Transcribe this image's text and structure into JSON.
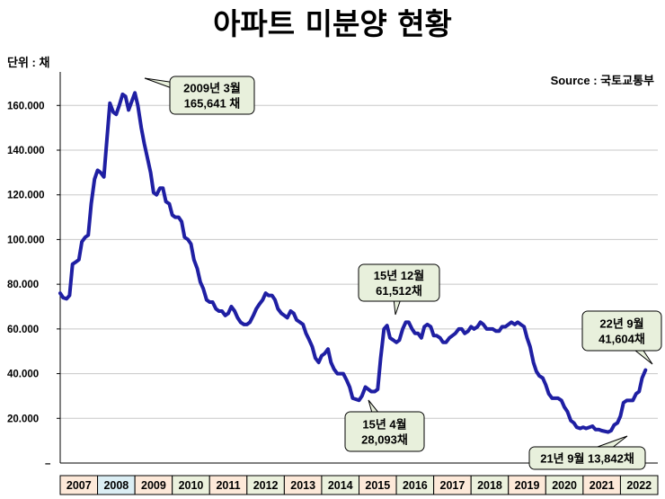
{
  "chart_data": {
    "type": "line",
    "title": "아파트 미분양 현황",
    "unit_label": "단위 : 채",
    "source_label": "Source :  국토교통부",
    "xlabel": "",
    "ylabel": "",
    "ylim": [
      0,
      175000
    ],
    "xlim": [
      2007.0,
      2023.0
    ],
    "y_ticks": [
      {
        "value": 20000,
        "label": "20.000"
      },
      {
        "value": 40000,
        "label": "40.000"
      },
      {
        "value": 60000,
        "label": "60.000"
      },
      {
        "value": 80000,
        "label": "80.000"
      },
      {
        "value": 100000,
        "label": "100.000"
      },
      {
        "value": 120000,
        "label": "120.000"
      },
      {
        "value": 140000,
        "label": "140.000"
      },
      {
        "value": 160000,
        "label": "160.000"
      }
    ],
    "x_categories": [
      {
        "label": "2007",
        "color": "#fde9d9"
      },
      {
        "label": "2008",
        "color": "#dbeef4"
      },
      {
        "label": "2009",
        "color": "#fde9d9"
      },
      {
        "label": "2010",
        "color": "#ebf1dd"
      },
      {
        "label": "2011",
        "color": "#fde9d9"
      },
      {
        "label": "2012",
        "color": "#ebf1dd"
      },
      {
        "label": "2013",
        "color": "#fde9d9"
      },
      {
        "label": "2014",
        "color": "#ebf1dd"
      },
      {
        "label": "2015",
        "color": "#fde9d9"
      },
      {
        "label": "2016",
        "color": "#ebf1dd"
      },
      {
        "label": "2017",
        "color": "#fde9d9"
      },
      {
        "label": "2018",
        "color": "#ebf1dd"
      },
      {
        "label": "2019",
        "color": "#fde9d9"
      },
      {
        "label": "2020",
        "color": "#ebf1dd"
      },
      {
        "label": "2021",
        "color": "#fde9d9"
      },
      {
        "label": "2022",
        "color": "#ebf1dd"
      }
    ],
    "series": [
      {
        "name": "",
        "color": "#1f1fa3",
        "points": [
          [
            2007.0,
            76000
          ],
          [
            2007.08,
            74000
          ],
          [
            2007.17,
            73500
          ],
          [
            2007.25,
            75000
          ],
          [
            2007.33,
            89000
          ],
          [
            2007.42,
            90000
          ],
          [
            2007.5,
            91000
          ],
          [
            2007.58,
            99000
          ],
          [
            2007.67,
            101000
          ],
          [
            2007.75,
            102000
          ],
          [
            2007.83,
            116000
          ],
          [
            2007.92,
            127000
          ],
          [
            2008.0,
            131000
          ],
          [
            2008.08,
            130000
          ],
          [
            2008.17,
            128000
          ],
          [
            2008.25,
            145000
          ],
          [
            2008.33,
            161000
          ],
          [
            2008.42,
            157000
          ],
          [
            2008.5,
            156000
          ],
          [
            2008.58,
            160000
          ],
          [
            2008.67,
            165000
          ],
          [
            2008.75,
            164000
          ],
          [
            2008.83,
            158000
          ],
          [
            2009.0,
            165641
          ],
          [
            2009.08,
            160000
          ],
          [
            2009.17,
            150000
          ],
          [
            2009.25,
            143000
          ],
          [
            2009.33,
            137000
          ],
          [
            2009.42,
            130000
          ],
          [
            2009.5,
            121000
          ],
          [
            2009.58,
            120000
          ],
          [
            2009.67,
            123000
          ],
          [
            2009.75,
            123000
          ],
          [
            2009.83,
            117000
          ],
          [
            2009.92,
            116000
          ],
          [
            2010.0,
            111000
          ],
          [
            2010.08,
            110000
          ],
          [
            2010.17,
            110000
          ],
          [
            2010.25,
            108000
          ],
          [
            2010.33,
            101000
          ],
          [
            2010.42,
            100000
          ],
          [
            2010.5,
            98000
          ],
          [
            2010.58,
            91000
          ],
          [
            2010.67,
            87000
          ],
          [
            2010.75,
            81000
          ],
          [
            2010.83,
            78000
          ],
          [
            2010.92,
            73000
          ],
          [
            2011.0,
            72000
          ],
          [
            2011.08,
            72000
          ],
          [
            2011.17,
            69000
          ],
          [
            2011.25,
            68000
          ],
          [
            2011.33,
            68000
          ],
          [
            2011.42,
            66000
          ],
          [
            2011.5,
            67000
          ],
          [
            2011.58,
            70000
          ],
          [
            2011.67,
            68000
          ],
          [
            2011.75,
            65000
          ],
          [
            2011.83,
            63000
          ],
          [
            2011.92,
            62000
          ],
          [
            2012.0,
            62000
          ],
          [
            2012.08,
            63000
          ],
          [
            2012.17,
            66000
          ],
          [
            2012.25,
            69000
          ],
          [
            2012.33,
            71000
          ],
          [
            2012.42,
            73000
          ],
          [
            2012.5,
            76000
          ],
          [
            2012.58,
            75000
          ],
          [
            2012.67,
            75000
          ],
          [
            2012.75,
            73000
          ],
          [
            2012.83,
            69000
          ],
          [
            2012.92,
            67000
          ],
          [
            2013.0,
            66000
          ],
          [
            2013.08,
            65000
          ],
          [
            2013.17,
            68000
          ],
          [
            2013.25,
            67000
          ],
          [
            2013.33,
            64000
          ],
          [
            2013.42,
            63000
          ],
          [
            2013.5,
            62000
          ],
          [
            2013.58,
            58000
          ],
          [
            2013.67,
            55000
          ],
          [
            2013.75,
            52000
          ],
          [
            2013.83,
            47000
          ],
          [
            2013.92,
            45000
          ],
          [
            2014.0,
            48000
          ],
          [
            2014.08,
            49000
          ],
          [
            2014.17,
            51000
          ],
          [
            2014.25,
            45000
          ],
          [
            2014.33,
            42000
          ],
          [
            2014.42,
            40000
          ],
          [
            2014.5,
            40000
          ],
          [
            2014.58,
            40000
          ],
          [
            2014.67,
            37000
          ],
          [
            2014.75,
            34000
          ],
          [
            2014.83,
            29000
          ],
          [
            2015.0,
            28093
          ],
          [
            2015.08,
            30000
          ],
          [
            2015.17,
            34000
          ],
          [
            2015.25,
            33000
          ],
          [
            2015.33,
            32000
          ],
          [
            2015.42,
            32000
          ],
          [
            2015.5,
            33000
          ],
          [
            2015.58,
            47000
          ],
          [
            2015.67,
            60000
          ],
          [
            2015.75,
            61512
          ],
          [
            2015.83,
            56000
          ],
          [
            2015.92,
            55000
          ],
          [
            2016.0,
            54000
          ],
          [
            2016.08,
            55000
          ],
          [
            2016.17,
            60000
          ],
          [
            2016.25,
            63000
          ],
          [
            2016.33,
            63000
          ],
          [
            2016.42,
            60000
          ],
          [
            2016.5,
            58000
          ],
          [
            2016.58,
            58000
          ],
          [
            2016.67,
            56000
          ],
          [
            2016.75,
            61000
          ],
          [
            2016.83,
            62000
          ],
          [
            2016.92,
            61000
          ],
          [
            2017.0,
            57000
          ],
          [
            2017.08,
            57000
          ],
          [
            2017.17,
            56000
          ],
          [
            2017.25,
            54000
          ],
          [
            2017.33,
            54000
          ],
          [
            2017.42,
            56000
          ],
          [
            2017.5,
            57000
          ],
          [
            2017.58,
            58000
          ],
          [
            2017.67,
            60000
          ],
          [
            2017.75,
            60000
          ],
          [
            2017.83,
            58000
          ],
          [
            2017.92,
            59000
          ],
          [
            2018.0,
            61000
          ],
          [
            2018.08,
            60000
          ],
          [
            2018.17,
            61000
          ],
          [
            2018.25,
            63000
          ],
          [
            2018.33,
            62000
          ],
          [
            2018.42,
            60000
          ],
          [
            2018.5,
            60000
          ],
          [
            2018.58,
            60000
          ],
          [
            2018.67,
            59000
          ],
          [
            2018.75,
            59000
          ],
          [
            2018.83,
            61000
          ],
          [
            2018.92,
            61000
          ],
          [
            2019.0,
            62000
          ],
          [
            2019.08,
            63000
          ],
          [
            2019.17,
            62000
          ],
          [
            2019.25,
            63000
          ],
          [
            2019.33,
            62000
          ],
          [
            2019.42,
            61000
          ],
          [
            2019.5,
            56000
          ],
          [
            2019.58,
            52000
          ],
          [
            2019.67,
            45000
          ],
          [
            2019.75,
            41000
          ],
          [
            2019.83,
            39000
          ],
          [
            2019.92,
            38000
          ],
          [
            2020.0,
            35000
          ],
          [
            2020.08,
            31000
          ],
          [
            2020.17,
            29000
          ],
          [
            2020.25,
            29000
          ],
          [
            2020.33,
            29000
          ],
          [
            2020.42,
            28000
          ],
          [
            2020.5,
            25000
          ],
          [
            2020.58,
            23000
          ],
          [
            2020.67,
            19000
          ],
          [
            2020.75,
            18000
          ],
          [
            2020.83,
            16000
          ],
          [
            2020.92,
            15500
          ],
          [
            2021.0,
            16000
          ],
          [
            2021.08,
            15500
          ],
          [
            2021.17,
            16000
          ],
          [
            2021.25,
            16500
          ],
          [
            2021.33,
            15000
          ],
          [
            2021.42,
            15000
          ],
          [
            2021.5,
            14500
          ],
          [
            2021.67,
            13842
          ],
          [
            2021.75,
            14500
          ],
          [
            2021.83,
            17000
          ],
          [
            2021.92,
            18000
          ],
          [
            2022.0,
            21000
          ],
          [
            2022.08,
            27000
          ],
          [
            2022.17,
            28000
          ],
          [
            2022.25,
            28000
          ],
          [
            2022.33,
            28000
          ],
          [
            2022.42,
            31000
          ],
          [
            2022.5,
            32000
          ],
          [
            2022.58,
            38000
          ],
          [
            2022.67,
            41604
          ]
        ]
      }
    ],
    "annotations": [
      {
        "lines": [
          "2009년 3월",
          "165,641 채"
        ],
        "point": [
          2009.0,
          165641
        ]
      },
      {
        "lines": [
          "15년 12월",
          "61,512채"
        ],
        "point": [
          2015.75,
          61512
        ]
      },
      {
        "lines": [
          "15년 4월",
          "28,093채"
        ],
        "point": [
          2015.0,
          28093
        ]
      },
      {
        "lines": [
          "22년 9월",
          "41,604채"
        ],
        "point": [
          2022.67,
          41604
        ]
      },
      {
        "lines": [
          "21년 9월  13,842채"
        ],
        "point": [
          2021.67,
          13842
        ]
      }
    ],
    "grid": true
  }
}
